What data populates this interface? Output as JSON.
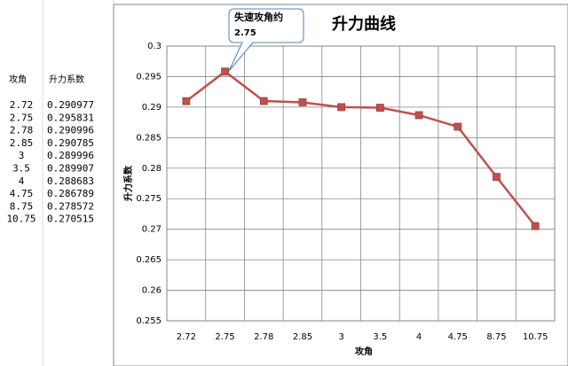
{
  "table": {
    "header": [
      "攻角",
      "升力系数"
    ],
    "rows": [
      [
        "2.72",
        "0.290977"
      ],
      [
        "2.75",
        "0.295831"
      ],
      [
        "2.78",
        "0.290996"
      ],
      [
        "2.85",
        "0.290785"
      ],
      [
        "3",
        "0.289996"
      ],
      [
        "3.5",
        "0.289907"
      ],
      [
        "4",
        "0.288683"
      ],
      [
        "4.75",
        "0.286789"
      ],
      [
        "8.75",
        "0.278572"
      ],
      [
        "10.75",
        "0.270515"
      ]
    ]
  },
  "chart_data": {
    "type": "line",
    "title": "升力曲线",
    "x_label": "攻角",
    "y_label": "升力系数",
    "annotation": [
      "失速攻角约",
      "2.75"
    ],
    "categories": [
      "2.72",
      "2.75",
      "2.78",
      "2.85",
      "3",
      "3.5",
      "4",
      "4.75",
      "8.75",
      "10.75"
    ],
    "series": [
      {
        "color": "#c0504d",
        "values": [
          0.290977,
          0.295831,
          0.290996,
          0.290785,
          0.289996,
          0.289907,
          0.288683,
          0.286789,
          0.278572,
          0.270515
        ]
      }
    ],
    "ylim": [
      0.255,
      0.3
    ],
    "yticks": [
      0.255,
      0.26,
      0.265,
      0.27,
      0.275,
      0.28,
      0.285,
      0.29,
      0.295,
      0.3
    ],
    "grid": true
  }
}
